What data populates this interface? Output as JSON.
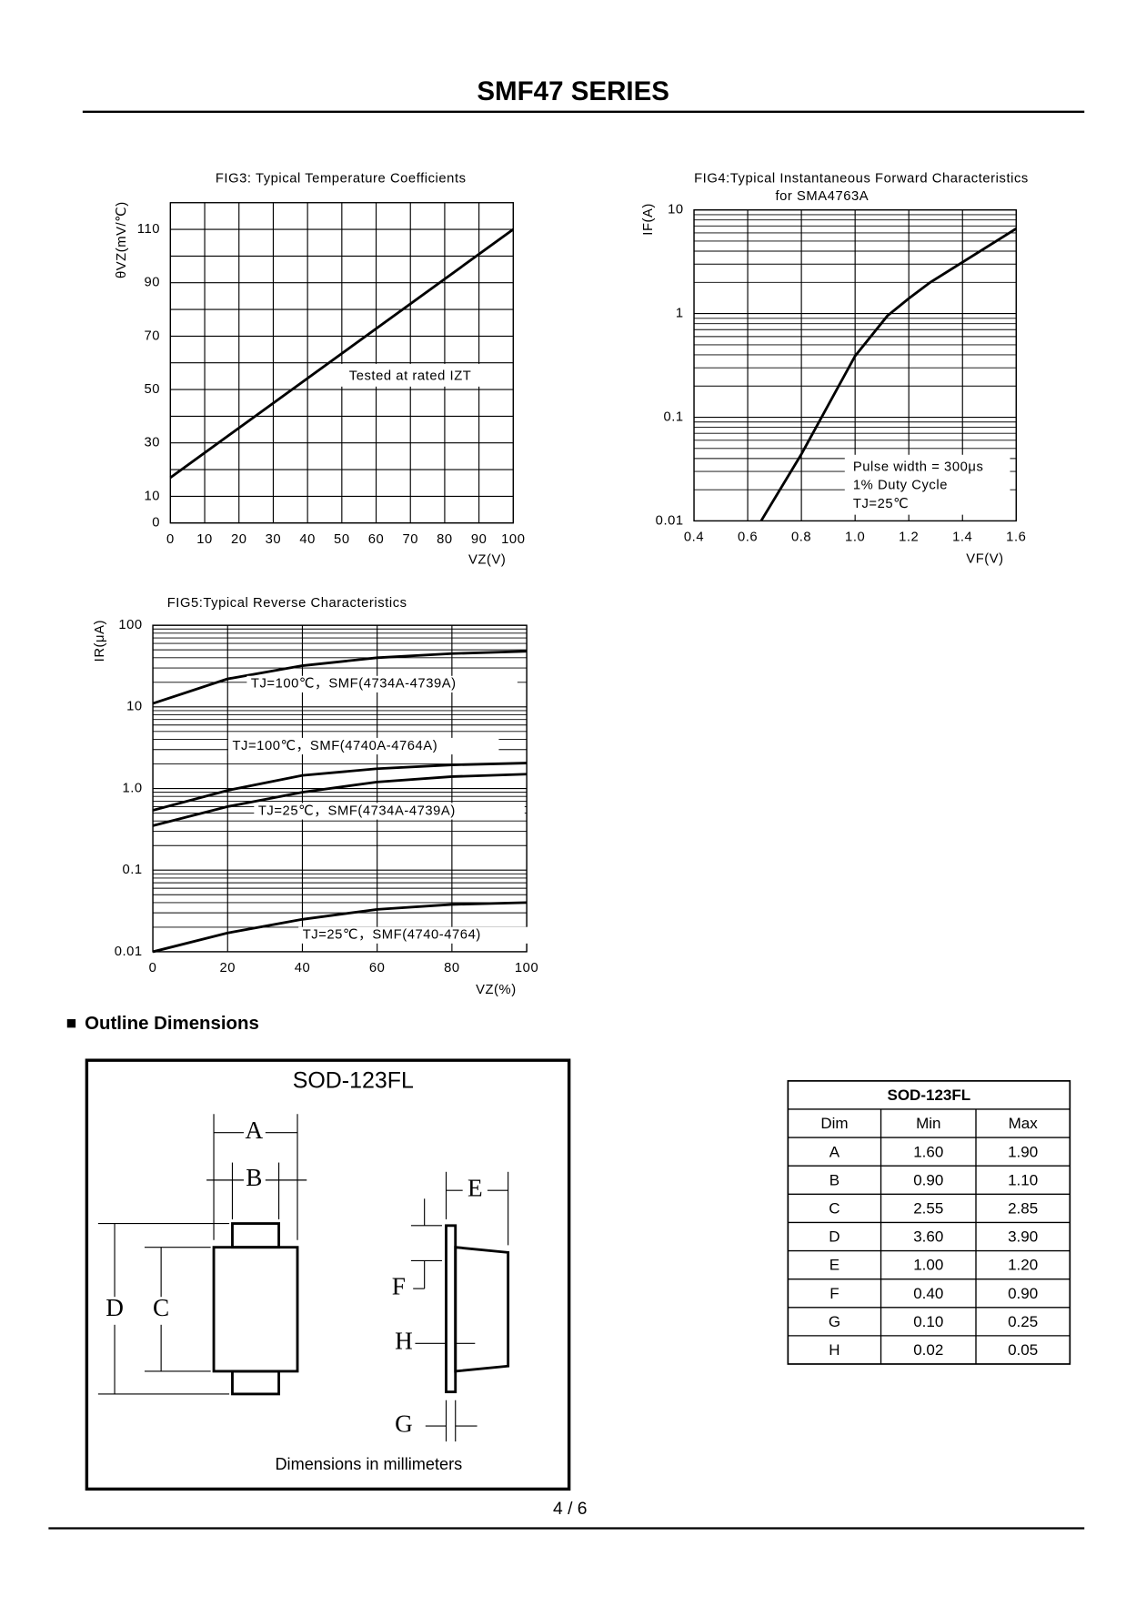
{
  "header": {
    "title": "SMF47 SERIES"
  },
  "chart_data": [
    {
      "type": "line",
      "title": "FIG3: Typical Temperature Coefficients",
      "y_label": "θVZ(mV/℃)",
      "x_label": "VZ(V)",
      "x": [
        0,
        100
      ],
      "series": [
        {
          "color": "#000000",
          "values": [
            17,
            110
          ]
        }
      ],
      "xlim": [
        0,
        100
      ],
      "ylim": [
        0,
        120
      ],
      "xticks": [
        0,
        10,
        20,
        30,
        40,
        50,
        60,
        70,
        80,
        90,
        100
      ],
      "yticks": [
        0,
        10,
        30,
        50,
        70,
        90,
        110
      ],
      "grid": true,
      "annotations": [
        "Tested at rated IZT"
      ]
    },
    {
      "type": "line",
      "title": "FIG4:Typical Instantaneous Forward Characteristics",
      "subtitle": "for SMA4763A",
      "y_label": "IF(A)",
      "x_label": "VF(V)",
      "log_y": true,
      "x": [
        0.65,
        0.8,
        1.0,
        1.12,
        1.2,
        1.28,
        1.6
      ],
      "series": [
        {
          "color": "#000000",
          "values": [
            0.01,
            0.044,
            0.39,
            0.95,
            1.4,
            2.0,
            6.6
          ]
        }
      ],
      "xlim": [
        0.4,
        1.6
      ],
      "ylim": [
        0.01,
        10
      ],
      "xticks": [
        0.4,
        0.6,
        0.8,
        {
          "value": 1,
          "label": "1.0"
        },
        1.2,
        1.4,
        1.6
      ],
      "yticks": [
        0.01,
        0.1,
        1,
        10
      ],
      "grid": true,
      "annotations": [
        "Pulse width = 300μs",
        "1% Duty Cycle",
        "TJ=25℃"
      ]
    },
    {
      "type": "line",
      "title": "FIG5:Typical Reverse Characteristics",
      "y_label": "IR(μA)",
      "x_label": "VZ(%)",
      "log_y": true,
      "x": [
        0,
        20,
        40,
        60,
        80,
        100
      ],
      "series": [
        {
          "name": "TJ=100℃，SMF(4734A-4739A)",
          "color": "#000000",
          "values": [
            11,
            22,
            32,
            40,
            45,
            48
          ]
        },
        {
          "name": "TJ=100℃，SMF(4740A-4764A)",
          "color": "#000000",
          "values": [
            0.54,
            0.95,
            1.45,
            1.75,
            1.95,
            2.05
          ]
        },
        {
          "name": "TJ=25℃，SMF(4734A-4739A)",
          "color": "#000000",
          "values": [
            0.35,
            0.6,
            0.9,
            1.2,
            1.4,
            1.5
          ]
        },
        {
          "name": "TJ=25℃，SMF(4740-4764)",
          "color": "#000000",
          "values": [
            0.01,
            0.017,
            0.025,
            0.033,
            0.038,
            0.04
          ]
        }
      ],
      "xlim": [
        0,
        100
      ],
      "ylim": [
        0.01,
        100
      ],
      "xticks": [
        0,
        20,
        40,
        60,
        80,
        100
      ],
      "yticks": [
        0.01,
        0.1,
        {
          "value": 1,
          "label": "1.0"
        },
        10,
        100
      ],
      "grid": true
    }
  ],
  "outline": {
    "heading": "Outline Dimensions",
    "package": "SOD-123FL",
    "labels": [
      "A",
      "B",
      "C",
      "D",
      "E",
      "F",
      "G",
      "H"
    ],
    "note": "Dimensions in millimeters"
  },
  "table": {
    "title": "SOD-123FL",
    "columns": [
      "Dim",
      "Min",
      "Max"
    ],
    "rows": [
      [
        "A",
        "1.60",
        "1.90"
      ],
      [
        "B",
        "0.90",
        "1.10"
      ],
      [
        "C",
        "2.55",
        "2.85"
      ],
      [
        "D",
        "3.60",
        "3.90"
      ],
      [
        "E",
        "1.00",
        "1.20"
      ],
      [
        "F",
        "0.40",
        "0.90"
      ],
      [
        "G",
        "0.10",
        "0.25"
      ],
      [
        "H",
        "0.02",
        "0.05"
      ]
    ]
  },
  "footer": {
    "page": "4 / 6"
  }
}
